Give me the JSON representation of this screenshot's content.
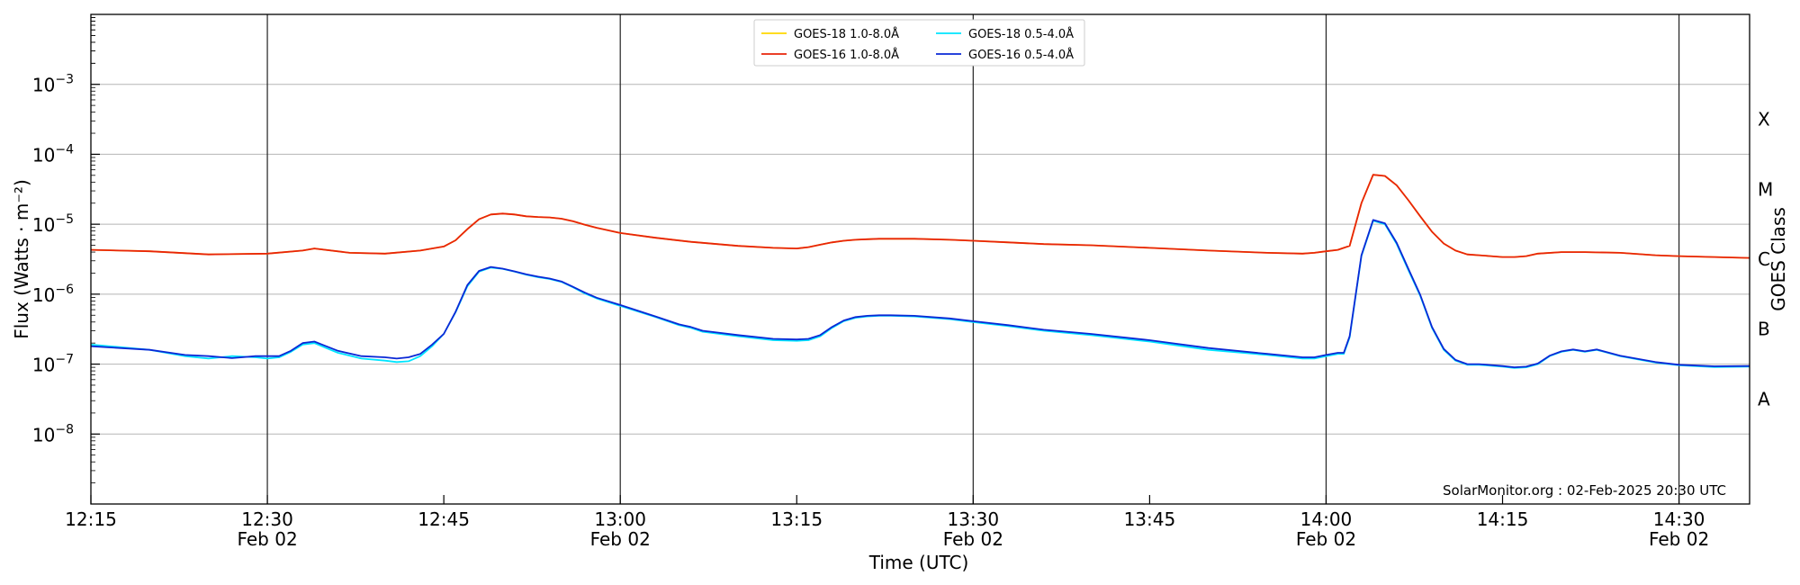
{
  "chart_data": {
    "type": "line",
    "xlabel": "Time (UTC)",
    "ylabel": "Flux (Watts · m⁻²)",
    "ylabel_right": "GOES Class",
    "credit": "SolarMonitor.org : 02-Feb-2025 20:30 UTC",
    "x_unit": "minutes past 12:00 UTC, 02 Feb 2025",
    "xlim": [
      15,
      156
    ],
    "ylim": [
      1e-09,
      0.01
    ],
    "yscale": "log",
    "grid": "horizontal at each decade",
    "legend_position": "top-center",
    "x_ticks": [
      {
        "x": 15,
        "line1": "12:15",
        "line2": ""
      },
      {
        "x": 30,
        "line1": "12:30",
        "line2": "Feb 02",
        "vline": true
      },
      {
        "x": 45,
        "line1": "12:45",
        "line2": ""
      },
      {
        "x": 60,
        "line1": "13:00",
        "line2": "Feb 02",
        "vline": true
      },
      {
        "x": 75,
        "line1": "13:15",
        "line2": ""
      },
      {
        "x": 90,
        "line1": "13:30",
        "line2": "Feb 02",
        "vline": true
      },
      {
        "x": 105,
        "line1": "13:45",
        "line2": ""
      },
      {
        "x": 120,
        "line1": "14:00",
        "line2": "Feb 02",
        "vline": true
      },
      {
        "x": 135,
        "line1": "14:15",
        "line2": ""
      },
      {
        "x": 150,
        "line1": "14:30",
        "line2": "Feb 02",
        "vline": true
      }
    ],
    "y_ticks": [
      {
        "exp": -8,
        "label": "10"
      },
      {
        "exp": -7,
        "label": "10"
      },
      {
        "exp": -6,
        "label": "10"
      },
      {
        "exp": -5,
        "label": "10"
      },
      {
        "exp": -4,
        "label": "10"
      },
      {
        "exp": -3,
        "label": "10"
      }
    ],
    "goes_classes": [
      {
        "label": "A",
        "exp": -7.5
      },
      {
        "label": "B",
        "exp": -6.5
      },
      {
        "label": "C",
        "exp": -5.5
      },
      {
        "label": "M",
        "exp": -4.5
      },
      {
        "label": "X",
        "exp": -3.5
      }
    ],
    "series": [
      {
        "name": "GOES-18 1.0-8.0Å",
        "color": "#ffd700",
        "x": [
          15,
          20,
          25,
          30,
          33,
          34,
          37,
          40,
          43,
          45,
          46,
          47,
          48,
          49,
          50,
          51,
          52,
          53,
          54,
          55,
          56,
          57,
          58,
          60,
          63,
          66,
          70,
          73,
          75,
          76,
          77,
          78,
          79,
          80,
          81,
          82,
          83,
          85,
          88,
          90,
          93,
          96,
          100,
          105,
          110,
          115,
          118,
          119,
          120,
          121,
          121.5,
          122,
          123,
          124,
          125,
          126,
          127,
          128,
          129,
          130,
          131,
          132,
          133,
          134,
          135,
          136,
          137,
          138,
          140,
          142,
          145,
          148,
          150,
          153,
          156
        ],
        "values": [
          4.3e-06,
          4.1e-06,
          3.7e-06,
          3.8e-06,
          4.2e-06,
          4.5e-06,
          3.9e-06,
          3.8e-06,
          4.2e-06,
          4.8e-06,
          5.9e-06,
          8.5e-06,
          1.18e-05,
          1.38e-05,
          1.42e-05,
          1.38e-05,
          1.3e-05,
          1.27e-05,
          1.25e-05,
          1.2e-05,
          1.1e-05,
          9.8e-06,
          8.9e-06,
          7.5e-06,
          6.4e-06,
          5.6e-06,
          4.9e-06,
          4.6e-06,
          4.5e-06,
          4.7e-06,
          5.1e-06,
          5.5e-06,
          5.8e-06,
          6e-06,
          6.1e-06,
          6.2e-06,
          6.2e-06,
          6.2e-06,
          6e-06,
          5.8e-06,
          5.5e-06,
          5.2e-06,
          5e-06,
          4.6e-06,
          4.2e-06,
          3.9e-06,
          3.8e-06,
          3.9e-06,
          4.1e-06,
          4.3e-06,
          4.6e-06,
          4.9e-06,
          2e-05,
          5.1e-05,
          4.9e-05,
          3.6e-05,
          2.2e-05,
          1.3e-05,
          7.8e-06,
          5.3e-06,
          4.2e-06,
          3.7e-06,
          3.6e-06,
          3.5e-06,
          3.4e-06,
          3.4e-06,
          3.5e-06,
          3.8e-06,
          4e-06,
          4e-06,
          3.9e-06,
          3.6e-06,
          3.5e-06,
          3.4e-06,
          3.3e-06
        ]
      },
      {
        "name": "GOES-16 1.0-8.0Å",
        "color": "#e8240a",
        "x": [
          15,
          20,
          25,
          30,
          33,
          34,
          37,
          40,
          43,
          45,
          46,
          47,
          48,
          49,
          50,
          51,
          52,
          53,
          54,
          55,
          56,
          57,
          58,
          60,
          63,
          66,
          70,
          73,
          75,
          76,
          77,
          78,
          79,
          80,
          81,
          82,
          83,
          85,
          88,
          90,
          93,
          96,
          100,
          105,
          110,
          115,
          118,
          119,
          120,
          121,
          121.5,
          122,
          123,
          124,
          125,
          126,
          127,
          128,
          129,
          130,
          131,
          132,
          133,
          134,
          135,
          136,
          137,
          138,
          140,
          142,
          145,
          148,
          150,
          153,
          156
        ],
        "values": [
          4.3e-06,
          4.1e-06,
          3.7e-06,
          3.8e-06,
          4.2e-06,
          4.5e-06,
          3.9e-06,
          3.8e-06,
          4.2e-06,
          4.8e-06,
          5.9e-06,
          8.5e-06,
          1.18e-05,
          1.38e-05,
          1.42e-05,
          1.38e-05,
          1.3e-05,
          1.27e-05,
          1.25e-05,
          1.2e-05,
          1.1e-05,
          9.8e-06,
          8.9e-06,
          7.5e-06,
          6.4e-06,
          5.6e-06,
          4.9e-06,
          4.6e-06,
          4.5e-06,
          4.7e-06,
          5.1e-06,
          5.5e-06,
          5.8e-06,
          6e-06,
          6.1e-06,
          6.2e-06,
          6.2e-06,
          6.2e-06,
          6e-06,
          5.8e-06,
          5.5e-06,
          5.2e-06,
          5e-06,
          4.6e-06,
          4.2e-06,
          3.9e-06,
          3.8e-06,
          3.9e-06,
          4.1e-06,
          4.3e-06,
          4.6e-06,
          4.9e-06,
          2e-05,
          5.1e-05,
          4.9e-05,
          3.6e-05,
          2.2e-05,
          1.3e-05,
          7.8e-06,
          5.3e-06,
          4.2e-06,
          3.7e-06,
          3.6e-06,
          3.5e-06,
          3.4e-06,
          3.4e-06,
          3.5e-06,
          3.8e-06,
          4e-06,
          4e-06,
          3.9e-06,
          3.6e-06,
          3.5e-06,
          3.4e-06,
          3.3e-06
        ]
      },
      {
        "name": "GOES-18 0.5-4.0Å",
        "color": "#00e5ff",
        "x": [
          15,
          20,
          23,
          25,
          27,
          29,
          30,
          31,
          32,
          33,
          34,
          35,
          36,
          38,
          40,
          41,
          42,
          43,
          44,
          45,
          46,
          47,
          48,
          49,
          50,
          51,
          52,
          53,
          54,
          55,
          56,
          57,
          58,
          60,
          63,
          65,
          66,
          67,
          70,
          73,
          75,
          76,
          77,
          78,
          79,
          80,
          81,
          82,
          83,
          85,
          88,
          90,
          93,
          96,
          100,
          105,
          110,
          115,
          118,
          119,
          120,
          121,
          121.5,
          122,
          123,
          124,
          125,
          126,
          127,
          128,
          129,
          130,
          131,
          132,
          133,
          134,
          135,
          136,
          137,
          138,
          139,
          140,
          141,
          142,
          143,
          145,
          148,
          150,
          153,
          156
        ],
        "values": [
          1.9e-07,
          1.6e-07,
          1.3e-07,
          1.2e-07,
          1.3e-07,
          1.25e-07,
          1.2e-07,
          1.25e-07,
          1.5e-07,
          1.9e-07,
          2e-07,
          1.7e-07,
          1.45e-07,
          1.2e-07,
          1.12e-07,
          1.07e-07,
          1.1e-07,
          1.3e-07,
          1.8e-07,
          2.7e-07,
          5.5e-07,
          1.3e-06,
          2.1e-06,
          2.4e-06,
          2.3e-06,
          2.1e-06,
          1.9e-06,
          1.75e-06,
          1.65e-06,
          1.5e-06,
          1.25e-06,
          1.02e-06,
          8.7e-07,
          6.8e-07,
          4.7e-07,
          3.6e-07,
          3.3e-07,
          2.9e-07,
          2.5e-07,
          2.2e-07,
          2.15e-07,
          2.2e-07,
          2.5e-07,
          3.3e-07,
          4.1e-07,
          4.6e-07,
          4.8e-07,
          4.9e-07,
          4.9e-07,
          4.8e-07,
          4.4e-07,
          4e-07,
          3.5e-07,
          3e-07,
          2.6e-07,
          2.1e-07,
          1.6e-07,
          1.35e-07,
          1.2e-07,
          1.2e-07,
          1.3e-07,
          1.4e-07,
          1.4e-07,
          2.4e-07,
          3.5e-06,
          1.12e-05,
          1e-05,
          5.2e-06,
          2.2e-06,
          9.5e-07,
          3.3e-07,
          1.6e-07,
          1.12e-07,
          9.8e-08,
          9.8e-08,
          9.5e-08,
          9.2e-08,
          8.8e-08,
          9e-08,
          1e-07,
          1.3e-07,
          1.5e-07,
          1.6e-07,
          1.5e-07,
          1.6e-07,
          1.3e-07,
          1.05e-07,
          9.6e-08,
          9.1e-08,
          9.2e-08
        ]
      },
      {
        "name": "GOES-16 0.5-4.0Å",
        "color": "#0a28d6",
        "x": [
          15,
          20,
          23,
          25,
          27,
          29,
          30,
          31,
          32,
          33,
          34,
          35,
          36,
          38,
          40,
          41,
          42,
          43,
          44,
          45,
          46,
          47,
          48,
          49,
          50,
          51,
          52,
          53,
          54,
          55,
          56,
          57,
          58,
          60,
          63,
          65,
          66,
          67,
          70,
          73,
          75,
          76,
          77,
          78,
          79,
          80,
          81,
          82,
          83,
          85,
          88,
          90,
          93,
          96,
          100,
          105,
          110,
          115,
          118,
          119,
          120,
          121,
          121.5,
          122,
          123,
          124,
          125,
          126,
          127,
          128,
          129,
          130,
          131,
          132,
          133,
          134,
          135,
          136,
          137,
          138,
          139,
          140,
          141,
          142,
          143,
          145,
          148,
          150,
          153,
          156
        ],
        "values": [
          1.8e-07,
          1.6e-07,
          1.35e-07,
          1.3e-07,
          1.22e-07,
          1.3e-07,
          1.3e-07,
          1.3e-07,
          1.55e-07,
          2e-07,
          2.1e-07,
          1.8e-07,
          1.55e-07,
          1.3e-07,
          1.25e-07,
          1.2e-07,
          1.25e-07,
          1.4e-07,
          1.9e-07,
          2.7e-07,
          5.6e-07,
          1.35e-06,
          2.15e-06,
          2.45e-06,
          2.32e-06,
          2.12e-06,
          1.92e-06,
          1.78e-06,
          1.67e-06,
          1.52e-06,
          1.27e-06,
          1.05e-06,
          8.9e-07,
          7e-07,
          4.8e-07,
          3.7e-07,
          3.4e-07,
          3e-07,
          2.6e-07,
          2.3e-07,
          2.25e-07,
          2.3e-07,
          2.6e-07,
          3.4e-07,
          4.2e-07,
          4.7e-07,
          4.9e-07,
          5e-07,
          5e-07,
          4.9e-07,
          4.5e-07,
          4.1e-07,
          3.6e-07,
          3.1e-07,
          2.7e-07,
          2.2e-07,
          1.7e-07,
          1.4e-07,
          1.25e-07,
          1.25e-07,
          1.35e-07,
          1.45e-07,
          1.45e-07,
          2.5e-07,
          3.6e-06,
          1.15e-05,
          1.03e-05,
          5.4e-06,
          2.3e-06,
          9.8e-07,
          3.4e-07,
          1.65e-07,
          1.15e-07,
          1e-07,
          1e-07,
          9.7e-08,
          9.4e-08,
          9e-08,
          9.2e-08,
          1.02e-07,
          1.32e-07,
          1.52e-07,
          1.62e-07,
          1.52e-07,
          1.62e-07,
          1.32e-07,
          1.07e-07,
          9.8e-08,
          9.3e-08,
          9.4e-08
        ]
      }
    ]
  }
}
